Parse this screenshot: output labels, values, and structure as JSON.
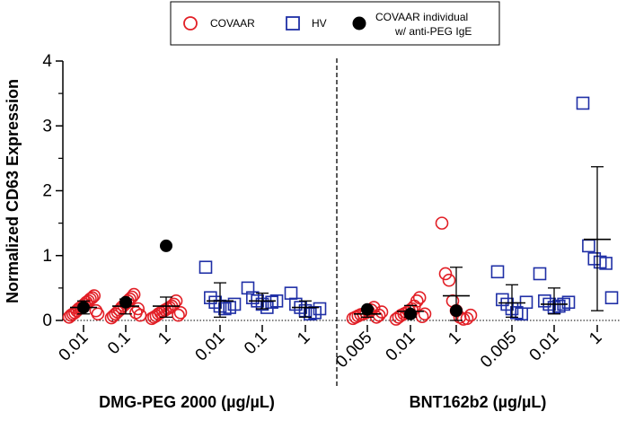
{
  "chart_data": {
    "type": "scatter",
    "ylabel": "Normalized CD63 Expression",
    "ylim": [
      0,
      4
    ],
    "yticks": [
      "0",
      "1",
      "2",
      "3",
      "4"
    ],
    "baseline_y": 0,
    "colors": {
      "covaar": "#e21f26",
      "hv": "#1f2fa6",
      "individual": "#000000"
    },
    "legend": {
      "covaar": "COVAAR",
      "hv": "HV",
      "individual_line1": "COVAAR individual",
      "individual_line2": "w/ anti-PEG IgE"
    },
    "panels": [
      {
        "name": "dmg",
        "xlabel": "DMG-PEG 2000 (µg/µL)"
      },
      {
        "name": "bnt",
        "xlabel": "BNT162b2 (µg/µL)"
      }
    ],
    "groups": [
      {
        "panel": 0,
        "label": "0.01",
        "series": "covaar",
        "mean": 0.2,
        "err_low": 0.1,
        "err_high": 0.3,
        "values": [
          0.05,
          0.08,
          0.1,
          0.12,
          0.15,
          0.18,
          0.2,
          0.22,
          0.25,
          0.28,
          0.3,
          0.33,
          0.35,
          0.38,
          0.15,
          0.1
        ],
        "individual": 0.2
      },
      {
        "panel": 0,
        "label": "0.1",
        "series": "covaar",
        "mean": 0.22,
        "err_low": 0.1,
        "err_high": 0.33,
        "values": [
          0.04,
          0.07,
          0.1,
          0.13,
          0.16,
          0.2,
          0.23,
          0.26,
          0.3,
          0.33,
          0.36,
          0.4,
          0.12,
          0.18,
          0.08
        ],
        "individual": 0.28
      },
      {
        "panel": 0,
        "label": "1",
        "series": "covaar",
        "mean": 0.22,
        "err_low": 0.05,
        "err_high": 0.36,
        "values": [
          0.03,
          0.05,
          0.07,
          0.1,
          0.12,
          0.14,
          0.16,
          0.18,
          0.2,
          0.22,
          0.25,
          0.3,
          0.08,
          0.12
        ],
        "individual": 1.15
      },
      {
        "panel": 0,
        "label": "0.01",
        "series": "hv",
        "mean": 0.3,
        "err_low": 0.05,
        "err_high": 0.58,
        "values": [
          0.82,
          0.35,
          0.28,
          0.22,
          0.18,
          0.2,
          0.25
        ],
        "individual": null
      },
      {
        "panel": 0,
        "label": "0.1",
        "series": "hv",
        "mean": 0.3,
        "err_low": 0.18,
        "err_high": 0.42,
        "values": [
          0.5,
          0.35,
          0.3,
          0.25,
          0.2,
          0.28,
          0.3
        ],
        "individual": null
      },
      {
        "panel": 0,
        "label": "1",
        "series": "hv",
        "mean": 0.2,
        "err_low": 0.05,
        "err_high": 0.3,
        "values": [
          0.42,
          0.25,
          0.2,
          0.15,
          0.1,
          0.12,
          0.18
        ],
        "individual": null
      },
      {
        "panel": 1,
        "label": "0.005",
        "series": "covaar",
        "mean": 0.1,
        "err_low": 0.05,
        "err_high": 0.18,
        "values": [
          0.03,
          0.05,
          0.07,
          0.09,
          0.1,
          0.12,
          0.14,
          0.16,
          0.2,
          0.05,
          0.08,
          0.13
        ],
        "individual": 0.17
      },
      {
        "panel": 1,
        "label": "0.01",
        "series": "covaar",
        "mean": 0.14,
        "err_low": 0.05,
        "err_high": 0.23,
        "values": [
          0.02,
          0.05,
          0.08,
          0.1,
          0.12,
          0.15,
          0.18,
          0.22,
          0.3,
          0.35,
          0.06,
          0.1
        ],
        "individual": 0.1
      },
      {
        "panel": 1,
        "label": "1",
        "series": "covaar",
        "mean": 0.38,
        "err_low": 0.0,
        "err_high": 0.82,
        "values": [
          1.5,
          0.72,
          0.62,
          0.3,
          0.15,
          0.05,
          0.02,
          0.03,
          0.08
        ],
        "individual": 0.15
      },
      {
        "panel": 1,
        "label": "0.005",
        "series": "hv",
        "mean": 0.27,
        "err_low": 0.05,
        "err_high": 0.55,
        "values": [
          0.75,
          0.32,
          0.25,
          0.18,
          0.12,
          0.1,
          0.28
        ],
        "individual": null
      },
      {
        "panel": 1,
        "label": "0.01",
        "series": "hv",
        "mean": 0.25,
        "err_low": 0.1,
        "err_high": 0.5,
        "values": [
          0.72,
          0.3,
          0.25,
          0.2,
          0.22,
          0.25,
          0.28
        ],
        "individual": null
      },
      {
        "panel": 1,
        "label": "1",
        "series": "hv",
        "mean": 1.25,
        "err_low": 0.15,
        "err_high": 2.37,
        "values": [
          3.35,
          1.15,
          0.95,
          0.9,
          0.88,
          0.35
        ],
        "individual": null
      }
    ]
  }
}
